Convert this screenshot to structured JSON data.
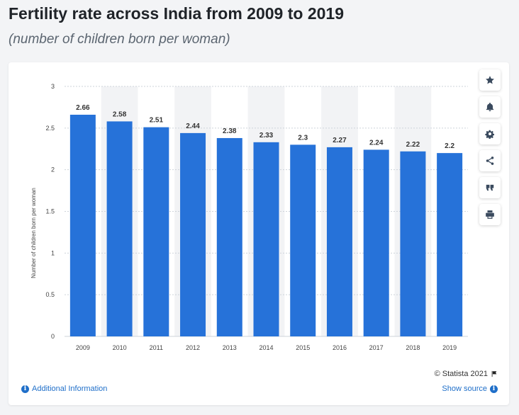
{
  "header": {
    "title": "Fertility rate across India from 2009 to 2019",
    "subtitle": "(number of children born per woman)"
  },
  "toolbar": {
    "items": [
      {
        "name": "star-icon",
        "label": "favorite"
      },
      {
        "name": "bell-icon",
        "label": "notify"
      },
      {
        "name": "gear-icon",
        "label": "settings"
      },
      {
        "name": "share-icon",
        "label": "share"
      },
      {
        "name": "quote-icon",
        "label": "cite"
      },
      {
        "name": "print-icon",
        "label": "print"
      }
    ]
  },
  "footer": {
    "credit": "© Statista 2021",
    "additional_info": "Additional Information",
    "show_source": "Show source"
  },
  "colors": {
    "bar": "#2672d9",
    "band": "#f2f3f5",
    "grid": "#cdd3da",
    "link": "#1f6fc9"
  },
  "chart_data": {
    "type": "bar",
    "categories": [
      "2009",
      "2010",
      "2011",
      "2012",
      "2013",
      "2014",
      "2015",
      "2016",
      "2017",
      "2018",
      "2019"
    ],
    "values": [
      2.66,
      2.58,
      2.51,
      2.44,
      2.38,
      2.33,
      2.3,
      2.27,
      2.24,
      2.22,
      2.2
    ],
    "data_labels": [
      "2.66",
      "2.58",
      "2.51",
      "2.44",
      "2.38",
      "2.33",
      "2.3",
      "2.27",
      "2.24",
      "2.22",
      "2.2"
    ],
    "title": "Fertility rate across India from 2009 to 2019",
    "subtitle": "(number of children born per woman)",
    "xlabel": "",
    "ylabel": "Number of children born per woman",
    "ylim": [
      0,
      3
    ],
    "yticks": [
      0,
      0.5,
      1,
      1.5,
      2,
      2.5,
      3
    ],
    "ytick_labels": [
      "0",
      "0.5",
      "1",
      "1.5",
      "2",
      "2.5",
      "3"
    ],
    "grid": true,
    "legend": "none"
  }
}
